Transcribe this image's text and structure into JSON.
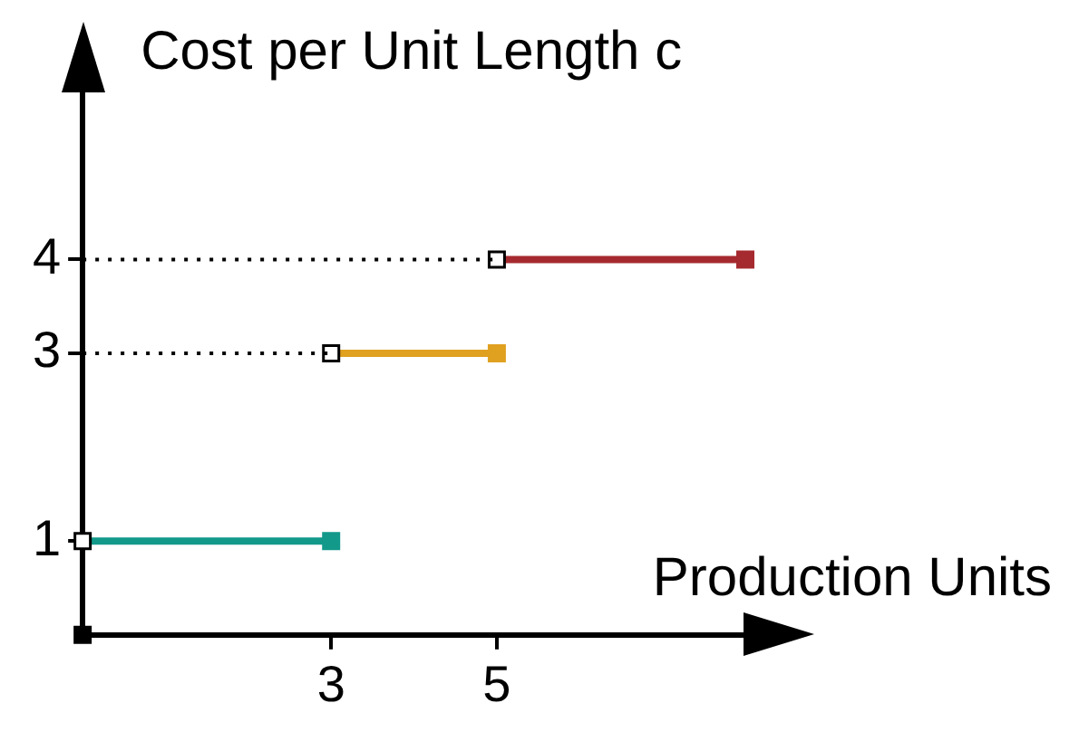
{
  "chart_data": {
    "type": "line",
    "xlabel": "Production Units",
    "ylabel": "Cost per Unit Length c",
    "xlim": [
      0,
      8
    ],
    "ylim": [
      0,
      5.8
    ],
    "xticks": [
      3,
      5
    ],
    "yticks": [
      1,
      3,
      4
    ],
    "grid": false,
    "legend": false,
    "marker": "square",
    "series": [
      {
        "type": "line",
        "x": [
          0,
          3
        ],
        "values": [
          3,
          3
        ],
        "color": "#000000",
        "line_style": "dotted"
      },
      {
        "type": "line",
        "x": [
          0,
          5
        ],
        "values": [
          4,
          4
        ],
        "color": "#000000",
        "line_style": "dotted"
      },
      {
        "type": "step",
        "x": [
          0,
          3
        ],
        "values": [
          1,
          1
        ],
        "color": "#12998a"
      },
      {
        "type": "step",
        "x": [
          3,
          5
        ],
        "values": [
          3,
          3
        ],
        "color": "#e0a020"
      },
      {
        "type": "step",
        "x": [
          5,
          8
        ],
        "values": [
          4,
          4
        ],
        "color": "#a52a2f"
      },
      {
        "type": "scatter",
        "x": [
          0
        ],
        "values": [
          0
        ],
        "color": "#000000"
      }
    ]
  }
}
